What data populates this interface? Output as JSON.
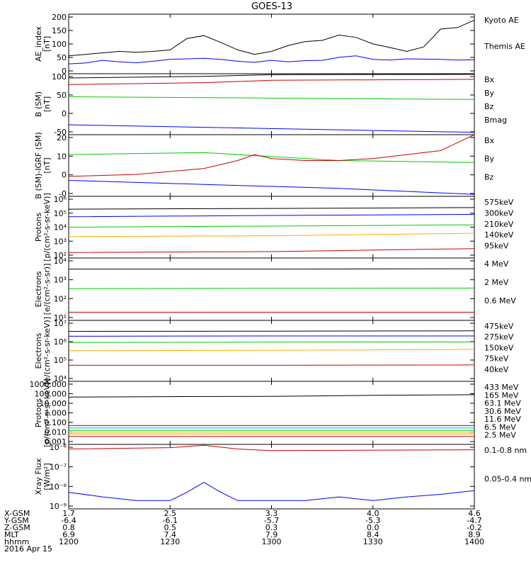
{
  "chart_data": {
    "type": "line",
    "title": "GOES-13",
    "x_ticks": [
      "1200",
      "1230",
      "1300",
      "1330",
      "1400"
    ],
    "ephemeris": {
      "rows": [
        {
          "label": "X-GSM",
          "values": [
            "1.7",
            "2.5",
            "3.3",
            "4.0",
            "4.6"
          ]
        },
        {
          "label": "Y-GSM",
          "values": [
            "-6.4",
            "-6.1",
            "-5.7",
            "-5.3",
            "-4.7"
          ]
        },
        {
          "label": "Z-GSM",
          "values": [
            "0.8",
            "0.5",
            "0.3",
            "0.0",
            "-0.2"
          ]
        },
        {
          "label": "MLT",
          "values": [
            "6.9",
            "7.4",
            "7.9",
            "8.4",
            "8.9"
          ]
        },
        {
          "label": "hhmm",
          "values": [
            "1200",
            "1230",
            "1300",
            "1330",
            "1400"
          ]
        }
      ],
      "date": "2016 Apr 15"
    },
    "panels": [
      {
        "id": "ae",
        "ylabel": [
          "AE_index",
          "[nT]"
        ],
        "scale": "linear",
        "ylim": [
          0,
          200
        ],
        "ticks": [
          "0",
          "50",
          "100",
          "150",
          "200"
        ],
        "series": [
          {
            "name": "Kyoto AE",
            "color": "#0000ff",
            "x": [
              0,
              5,
              10,
              15,
              20,
              25,
              30,
              35,
              40,
              45,
              50,
              55,
              60,
              65,
              70,
              75,
              80,
              85,
              90,
              95,
              100,
              105,
              110,
              115,
              120
            ],
            "y": [
              33,
              36,
              45,
              40,
              37,
              42,
              48,
              50,
              52,
              48,
              42,
              38,
              45,
              40,
              44,
              45,
              55,
              60,
              48,
              46,
              50,
              49,
              48,
              46,
              47
            ]
          },
          {
            "name": "Themis AE",
            "color": "#000000",
            "x": [
              0,
              5,
              10,
              15,
              20,
              25,
              30,
              35,
              40,
              45,
              50,
              55,
              60,
              65,
              70,
              75,
              80,
              85,
              90,
              95,
              100,
              105,
              110,
              115,
              120
            ],
            "y": [
              60,
              65,
              70,
              75,
              72,
              75,
              80,
              118,
              128,
              105,
              80,
              65,
              75,
              95,
              108,
              112,
              130,
              122,
              100,
              88,
              75,
              90,
              150,
              155,
              180
            ]
          }
        ]
      },
      {
        "id": "bsm",
        "ylabel": [
          "B (SM)",
          "[nT]"
        ],
        "scale": "linear",
        "ylim": [
          -55,
          130
        ],
        "ticks": [
          "-50",
          "0",
          "50",
          "100"
        ],
        "series": [
          {
            "name": "Bx",
            "color": "#0000ff",
            "x": [
              0,
              120
            ],
            "y": [
              -25,
              -48
            ]
          },
          {
            "name": "By",
            "color": "#00cc00",
            "x": [
              0,
              120
            ],
            "y": [
              60,
              52
            ]
          },
          {
            "name": "Bz",
            "color": "#cc0000",
            "x": [
              0,
              40,
              60,
              120
            ],
            "y": [
              97,
              103,
              110,
              113
            ]
          },
          {
            "name": "Bmag",
            "color": "#000000",
            "x": [
              0,
              40,
              60,
              120
            ],
            "y": [
              117,
              122,
              127,
              128
            ]
          }
        ]
      },
      {
        "id": "bigrf",
        "ylabel": [
          "B (SM)-IGRF (SM)",
          "[nT]"
        ],
        "scale": "linear",
        "ylim": [
          -6,
          25
        ],
        "ticks": [
          "-0",
          "0",
          "10",
          "20"
        ],
        "series": [
          {
            "name": "Bx",
            "color": "#0000ff",
            "x": [
              0,
              40,
              80,
              120
            ],
            "y": [
              2,
              0,
              -2,
              -5
            ]
          },
          {
            "name": "By",
            "color": "#00cc00",
            "x": [
              0,
              40,
              60,
              80,
              120
            ],
            "y": [
              15,
              16,
              14,
              12,
              11
            ]
          },
          {
            "name": "Bz",
            "color": "#cc0000",
            "x": [
              0,
              20,
              40,
              50,
              55,
              60,
              70,
              80,
              90,
              100,
              110,
              120
            ],
            "y": [
              4,
              5,
              8,
              12,
              15,
              13,
              12,
              12,
              13,
              15,
              17,
              25
            ]
          }
        ]
      },
      {
        "id": "protons",
        "ylabel": [
          "Protons",
          "[p/(cm²-s-sr-keV)]"
        ],
        "scale": "log",
        "ylim": [
          50,
          2000000
        ],
        "ticks": [
          "10²",
          "10³",
          "10⁴",
          "10⁵",
          "10⁶"
        ],
        "series": [
          {
            "name": "575keV",
            "color": "#cc0000",
            "x": [
              0,
              60,
              120
            ],
            "y": [
              130,
              150,
              250
            ]
          },
          {
            "name": "300keV",
            "color": "#ffaa00",
            "x": [
              0,
              60,
              120
            ],
            "y": [
              2000,
              2300,
              3500
            ]
          },
          {
            "name": "210keV",
            "color": "#00cc00",
            "x": [
              0,
              60,
              120
            ],
            "y": [
              10000,
              12000,
              15000
            ]
          },
          {
            "name": "140keV",
            "color": "#0000ff",
            "x": [
              0,
              60,
              120
            ],
            "y": [
              60000,
              75000,
              90000
            ]
          },
          {
            "name": "95keV",
            "color": "#000000",
            "x": [
              0,
              60,
              120
            ],
            "y": [
              220000,
              250000,
              290000
            ]
          }
        ]
      },
      {
        "id": "electrons_mev",
        "ylabel": [
          "Electrons",
          "[e/(cm²-s-sr)]"
        ],
        "scale": "log",
        "ylim": [
          5,
          200000
        ],
        "ticks": [
          "10¹",
          "10²",
          "10³",
          "10⁴"
        ],
        "series": [
          {
            "name": "4 MeV",
            "color": "#cc0000",
            "x": [
              0,
              60,
              120
            ],
            "y": [
              20,
              20,
              20
            ]
          },
          {
            "name": "2 MeV",
            "color": "#00cc00",
            "x": [
              0,
              60,
              120
            ],
            "y": [
              1100,
              1150,
              1200
            ]
          },
          {
            "name": "0.6 MeV",
            "color": "#000000",
            "x": [
              0,
              60,
              120
            ],
            "y": [
              30000,
              30000,
              32000
            ]
          }
        ]
      },
      {
        "id": "electrons_kev",
        "ylabel": [
          "Electrons",
          "[e/(cm²-s-sr-keV)]"
        ],
        "scale": "log",
        "ylim": [
          6000,
          10000000
        ],
        "ticks": [
          "10⁴",
          "10⁵",
          "10⁶",
          "10⁷"
        ],
        "series": [
          {
            "name": "475keV",
            "color": "#cc0000",
            "x": [
              0,
              60,
              120
            ],
            "y": [
              42000,
              42000,
              44000
            ]
          },
          {
            "name": "275keV",
            "color": "#ffaa00",
            "x": [
              0,
              60,
              120
            ],
            "y": [
              250000,
              260000,
              290000
            ]
          },
          {
            "name": "150keV",
            "color": "#00cc00",
            "x": [
              0,
              60,
              120
            ],
            "y": [
              680000,
              700000,
              720000
            ]
          },
          {
            "name": "75keV",
            "color": "#0000ff",
            "x": [
              0,
              60,
              120
            ],
            "y": [
              1450000,
              1500000,
              1500000
            ]
          },
          {
            "name": "40keV",
            "color": "#000000",
            "x": [
              0,
              60,
              120
            ],
            "y": [
              2600000,
              2700000,
              2800000
            ]
          }
        ]
      },
      {
        "id": "protons_mev",
        "ylabel": [
          "Protons",
          "[p/(cm²-s-sr-keV)]"
        ],
        "scale": "log",
        "ylim": [
          0.0008,
          1500
        ],
        "ticks": [
          "0.001",
          "0.010",
          "0.100",
          "1.000",
          "10.000",
          "100.000",
          "1000.000"
        ],
        "series": [
          {
            "name": "433 MeV",
            "color": "#cc0000",
            "x": [
              0,
              120
            ],
            "y": [
              0.005,
              0.005
            ]
          },
          {
            "name": "165 MeV",
            "color": "#ff8800",
            "x": [
              0,
              120
            ],
            "y": [
              0.009,
              0.009
            ]
          },
          {
            "name": "63.1 MeV",
            "color": "#eecc00",
            "x": [
              0,
              120
            ],
            "y": [
              0.013,
              0.013
            ]
          },
          {
            "name": "30.6 MeV",
            "color": "#00cc00",
            "x": [
              0,
              120
            ],
            "y": [
              0.02,
              0.02
            ]
          },
          {
            "name": "11.6 MeV",
            "color": "#00aaff",
            "x": [
              0,
              120
            ],
            "y": [
              0.035,
              0.035
            ]
          },
          {
            "name": "6.5 MeV",
            "color": "#6600aa",
            "x": [
              0,
              120
            ],
            "y": [
              0.06,
              0.06
            ]
          },
          {
            "name": "2.5 MeV",
            "color": "#000000",
            "x": [
              0,
              30,
              60,
              90,
              120
            ],
            "y": [
              40,
              45,
              48,
              60,
              70
            ]
          }
        ]
      },
      {
        "id": "xray",
        "ylabel": [
          "Xray Flux",
          "[W/m²]"
        ],
        "scale": "log",
        "ylim": [
          8e-10,
          1e-06
        ],
        "ticks": [
          "10⁻⁹",
          "10⁻⁸",
          "10⁻⁷",
          "10⁻⁶"
        ],
        "series": [
          {
            "name": "0.1-0.8 nm",
            "color": "#cc0000",
            "x": [
              0,
              30,
              40,
              50,
              60,
              120
            ],
            "y": [
              6e-07,
              7e-07,
              9e-07,
              6e-07,
              5e-07,
              5.5e-07
            ]
          },
          {
            "name": "0.05-0.4 nm",
            "color": "#0000ff",
            "x": [
              0,
              10,
              20,
              30,
              35,
              40,
              45,
              50,
              60,
              70,
              80,
              90,
              100,
              110,
              120
            ],
            "y": [
              5e-09,
              3e-09,
              2e-09,
              2e-09,
              5e-09,
              1.5e-08,
              5e-09,
              2e-09,
              2e-09,
              2e-09,
              3e-09,
              2e-09,
              3e-09,
              4e-09,
              6e-09
            ]
          }
        ]
      }
    ]
  }
}
